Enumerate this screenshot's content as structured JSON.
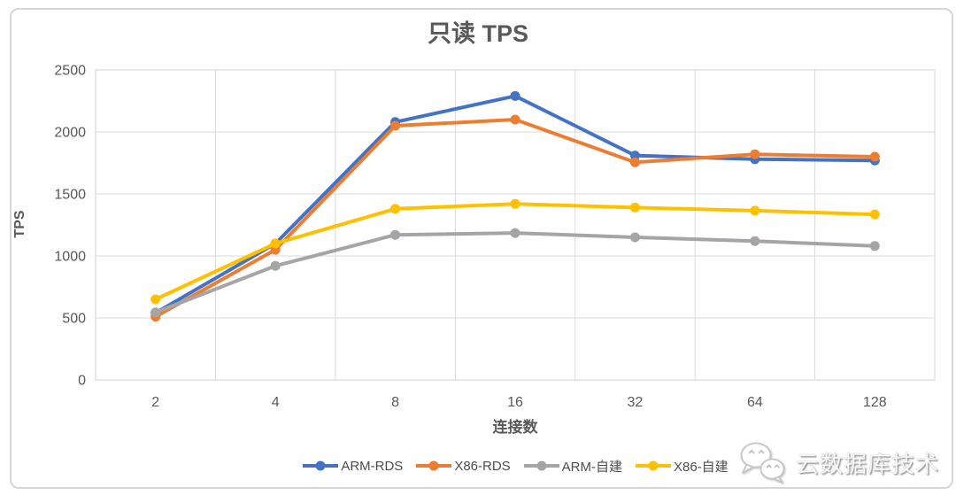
{
  "chart_data": {
    "type": "line",
    "title": "只读 TPS",
    "xlabel": "连接数",
    "ylabel": "TPS",
    "categories": [
      "2",
      "4",
      "8",
      "16",
      "32",
      "64",
      "128"
    ],
    "y_ticks": [
      0,
      500,
      1000,
      1500,
      2000,
      2500
    ],
    "ylim": [
      0,
      2500
    ],
    "grid": true,
    "legend_position": "bottom",
    "series": [
      {
        "name": "ARM-RDS",
        "color": "#4472C4",
        "values": [
          540,
          1100,
          2080,
          2290,
          1810,
          1780,
          1770
        ]
      },
      {
        "name": "X86-RDS",
        "color": "#ED7D31",
        "values": [
          510,
          1050,
          2050,
          2100,
          1755,
          1820,
          1800
        ]
      },
      {
        "name": "ARM-自建",
        "color": "#A5A5A5",
        "values": [
          545,
          920,
          1170,
          1185,
          1150,
          1120,
          1080
        ]
      },
      {
        "name": "X86-自建",
        "color": "#FFC000",
        "values": [
          650,
          1100,
          1380,
          1420,
          1390,
          1365,
          1335
        ]
      }
    ]
  },
  "watermark": {
    "text": "云数据库技术",
    "icon": "wechat-icon"
  },
  "colors": {
    "grid": "#D9D9D9",
    "axis_text": "#595959",
    "title_text": "#595959",
    "card_border": "#D6D6D6"
  }
}
